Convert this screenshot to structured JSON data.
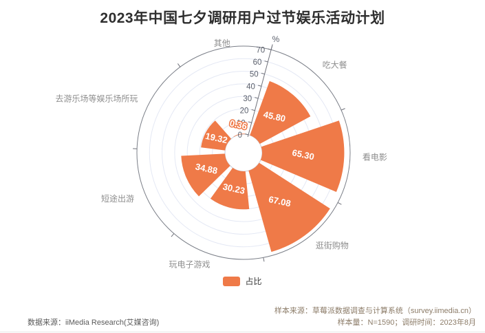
{
  "title": "2023年中国七夕调研用户过节娱乐活动计划",
  "legend": {
    "label": "占比",
    "swatch_color": "#EF7A48"
  },
  "footer": {
    "source_left": "数据来源：iiMedia Research(艾媒咨询)",
    "sample_source": "样本来源：草莓派数据调查与计算系统（survey.iimedia.cn）",
    "sample_size": "样本量：N=1590；调研时间：2023年8月"
  },
  "chart_data": {
    "type": "bar",
    "variant": "polar-rose",
    "title": "2023年中国七夕调研用户过节娱乐活动计划",
    "categories": [
      "吃大餐",
      "看电影",
      "逛街购物",
      "玩电子游戏",
      "短途出游",
      "去游乐场等娱乐场所玩",
      "其他"
    ],
    "series": [
      {
        "name": "占比",
        "values": [
          45.8,
          65.3,
          67.08,
          30.23,
          34.88,
          19.32,
          0.36
        ]
      }
    ],
    "value_labels": [
      "45.80",
      "65.30",
      "67.08",
      "30.23",
      "34.88",
      "19.32",
      "0.36"
    ],
    "unit": "%",
    "radial_axis": {
      "min": 0,
      "max": 70,
      "ticks": [
        0,
        10,
        20,
        30,
        40,
        50,
        60,
        70
      ],
      "unit_label": "%"
    },
    "angular_layout": {
      "start_angle_deg": 75,
      "direction": "clockwise"
    },
    "grid": true,
    "legend_position": "bottom",
    "colors": {
      "bar": "#EF7A48",
      "grid_ring": "#E4E8F4",
      "inner_ring": "#C8CCD8",
      "outer_ring": "#7A7E87",
      "axis": "#6E7079",
      "tick_label": "#5A5F6B",
      "category_label": "#8E8E8E",
      "value_label": "#FFFFFF"
    }
  }
}
